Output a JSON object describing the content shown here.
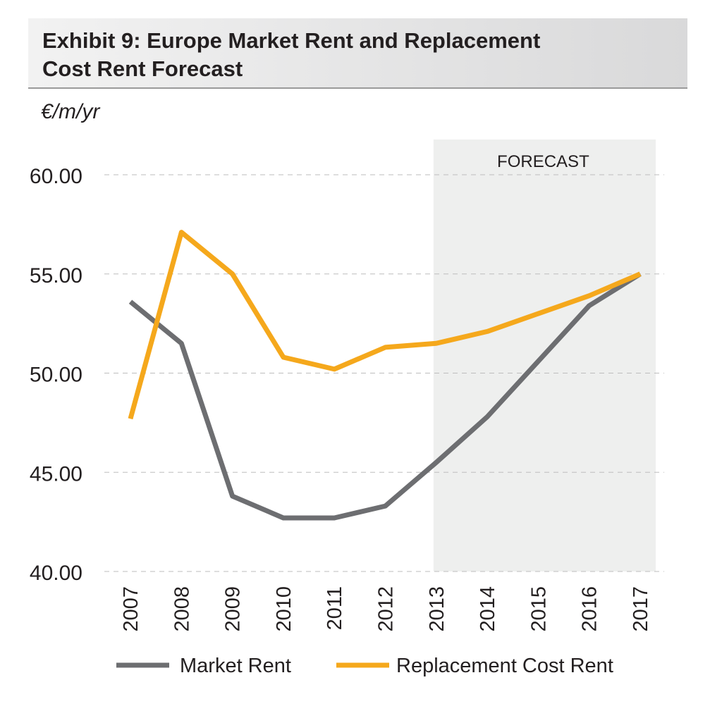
{
  "title": "Exhibit 9: Europe Market Rent and Replacement Cost Rent Forecast",
  "unit_label": "€/m/yr",
  "chart_data": {
    "type": "line",
    "title": "Exhibit 9: Europe Market Rent and Replacement Cost Rent Forecast",
    "xlabel": "",
    "ylabel": "€/m/yr",
    "x": [
      "2007",
      "2008",
      "2009",
      "2010",
      "2011",
      "2012",
      "2013",
      "2014",
      "2015",
      "2016",
      "2017"
    ],
    "ylim": [
      40,
      60
    ],
    "yticks": [
      40,
      45,
      50,
      55,
      60
    ],
    "ytick_labels": [
      "40.00",
      "45.00",
      "50.00",
      "55.00",
      "60.00"
    ],
    "grid": true,
    "forecast_region": {
      "label": "FORECAST",
      "start": "2013",
      "end": "2017"
    },
    "series": [
      {
        "name": "Market Rent",
        "color": "#6d6e71",
        "values": [
          53.6,
          51.5,
          43.8,
          42.7,
          42.7,
          43.3,
          45.5,
          47.8,
          50.6,
          53.4,
          55.0
        ]
      },
      {
        "name": "Replacement Cost Rent",
        "color": "#f5a81c",
        "values": [
          47.7,
          57.1,
          55.0,
          50.8,
          50.2,
          51.3,
          51.5,
          52.1,
          53.0,
          53.9,
          55.0
        ]
      }
    ],
    "legend": "bottom"
  }
}
